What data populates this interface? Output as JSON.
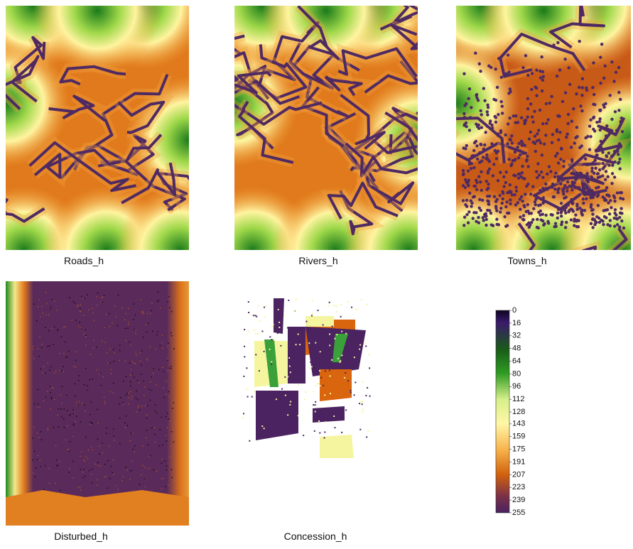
{
  "panels": [
    {
      "label": "Roads_h"
    },
    {
      "label": "Rivers_h"
    },
    {
      "label": "Towns_h"
    },
    {
      "label": "Disturbed_h"
    },
    {
      "label": "Concession_h"
    }
  ],
  "colorbar": {
    "range": [
      0,
      255
    ],
    "ticks": [
      0,
      16,
      32,
      48,
      64,
      80,
      96,
      112,
      128,
      143,
      159,
      175,
      191,
      207,
      223,
      239,
      255
    ]
  }
}
